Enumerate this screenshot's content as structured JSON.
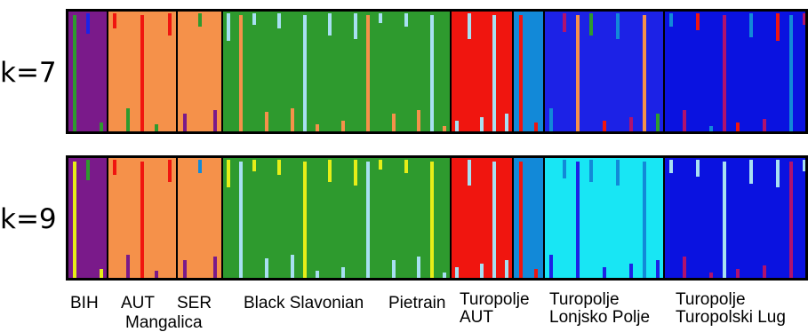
{
  "colors": {
    "purple": "#7a1a8a",
    "orange": "#f5914a",
    "green": "#2e9a2e",
    "red": "#f0150f",
    "mid_blue": "#1289d8",
    "royal_blue": "#1c22e6",
    "dark_blue": "#0a12e0",
    "light_blue": "#a8e0f2",
    "yellow": "#e6ee18",
    "cyan": "#18e6f4",
    "magenta": "#b0126e"
  },
  "rows": [
    {
      "k_label": "k=7",
      "segments": [
        {
          "base": "purple",
          "accents": [
            "green",
            "royal_blue"
          ]
        },
        {
          "base": "orange",
          "accents": [
            "red",
            "green"
          ]
        },
        {
          "base": "orange",
          "accents": [
            "purple",
            "green"
          ]
        },
        {
          "base": "green",
          "accents": [
            "light_blue",
            "orange"
          ]
        },
        {
          "base": "red",
          "accents": [
            "light_blue"
          ]
        },
        {
          "base": "mid_blue",
          "accents": [
            "red"
          ]
        },
        {
          "base": "royal_blue",
          "accents": [
            "mid_blue",
            "magenta",
            "orange",
            "green",
            "red"
          ]
        },
        {
          "base": "dark_blue",
          "accents": [
            "mid_blue",
            "magenta",
            "red"
          ]
        }
      ]
    },
    {
      "k_label": "k=9",
      "segments": [
        {
          "base": "purple",
          "accents": [
            "yellow",
            "green"
          ]
        },
        {
          "base": "orange",
          "accents": [
            "red",
            "purple"
          ]
        },
        {
          "base": "orange",
          "accents": [
            "purple",
            "mid_blue"
          ]
        },
        {
          "base": "green",
          "accents": [
            "yellow",
            "light_blue"
          ]
        },
        {
          "base": "red",
          "accents": [
            "light_blue"
          ]
        },
        {
          "base": "mid_blue",
          "accents": [
            "red"
          ]
        },
        {
          "base": "cyan",
          "accents": [
            "royal_blue",
            "mid_blue"
          ]
        },
        {
          "base": "dark_blue",
          "accents": [
            "light_blue",
            "magenta"
          ]
        }
      ]
    }
  ],
  "population_labels": [
    "BIH",
    "AUT",
    "SER",
    "Black Slavonian",
    "Pietrain",
    "Turopolje\nAUT",
    "Turopolje\nLonjsko Polje",
    "Turopolje\nTuropolski Lug"
  ],
  "group_label": "Mangalica"
}
